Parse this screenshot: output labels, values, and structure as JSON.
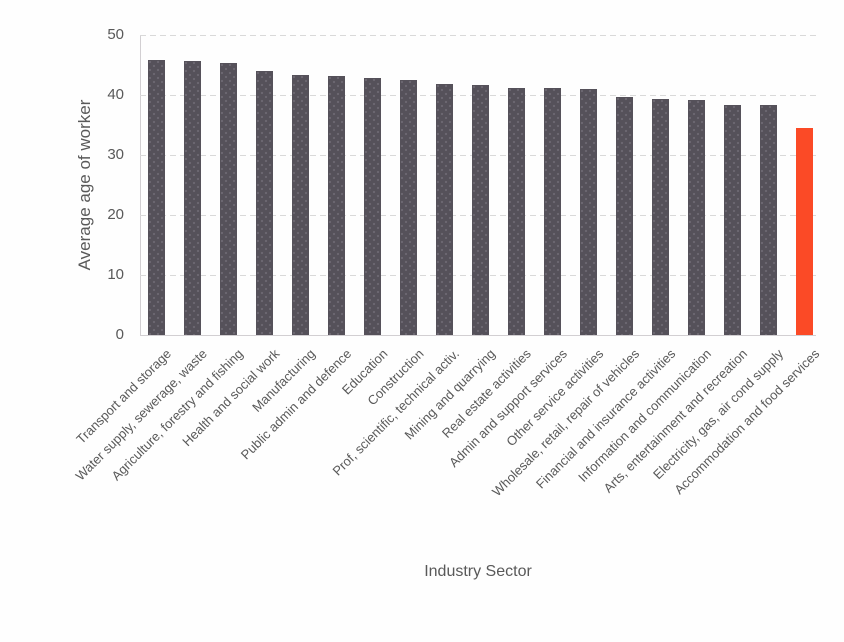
{
  "chart_data": {
    "type": "bar",
    "title": "",
    "xlabel": "Industry Sector",
    "ylabel": "Average age of worker",
    "ylim": [
      0,
      50
    ],
    "yticks": [
      0,
      10,
      20,
      30,
      40,
      50
    ],
    "grid": "horizontal-dashed",
    "legend": "none",
    "categories": [
      "Transport and storage",
      "Water supply, sewerage, waste",
      "Agriculture, forestry and fishing",
      "Health and social work",
      "Manufacturing",
      "Public admin and defence",
      "Education",
      "Construction",
      "Prof, scientific, technical activ.",
      "Mining and quarrying",
      "Real estate activities",
      "Admin and support services",
      "Other service activities",
      "Wholesale, retail, repair of vehicles",
      "Financial and insurance activities",
      "Information and communication",
      "Arts, entertainment and recreation",
      "Electricity, gas, air cond supply",
      "Accommodation and food services"
    ],
    "values": [
      45.9,
      45.7,
      45.4,
      44.0,
      43.4,
      43.1,
      42.8,
      42.5,
      41.8,
      41.7,
      41.2,
      41.1,
      41.0,
      39.7,
      39.3,
      39.2,
      38.4,
      38.3,
      34.5
    ],
    "highlight_index": 18,
    "colors": {
      "bar_default": "#55515A",
      "bar_dot": "#6D6973",
      "bar_highlight": "#FB4A26",
      "gridline": "#D9D9D9",
      "axis_line": "#D2CFD2",
      "text": "#595959"
    }
  }
}
